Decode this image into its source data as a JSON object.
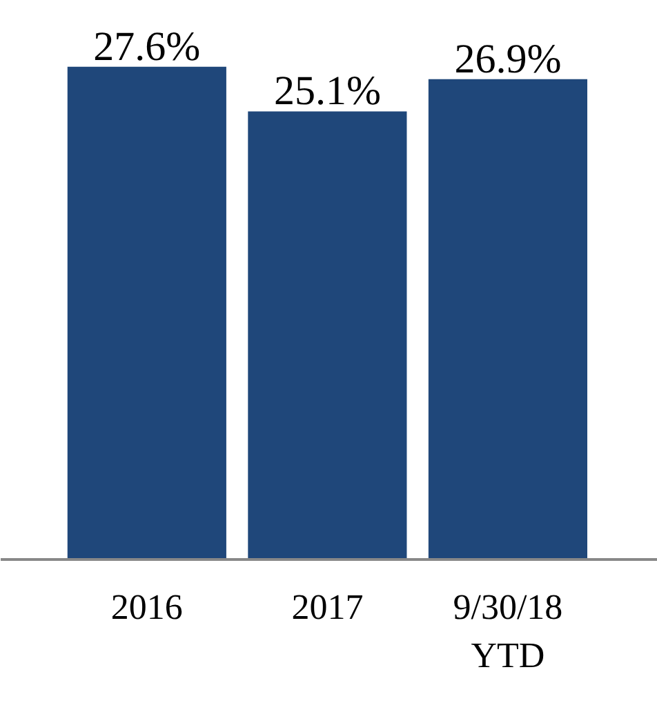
{
  "chart_data": {
    "type": "bar",
    "categories": [
      "2016",
      "2017",
      "9/30/18\nYTD"
    ],
    "values": [
      27.6,
      25.1,
      26.9
    ],
    "value_labels": [
      "27.6%",
      "25.1%",
      "26.9%"
    ],
    "color": "#1f477a",
    "grid": false
  }
}
